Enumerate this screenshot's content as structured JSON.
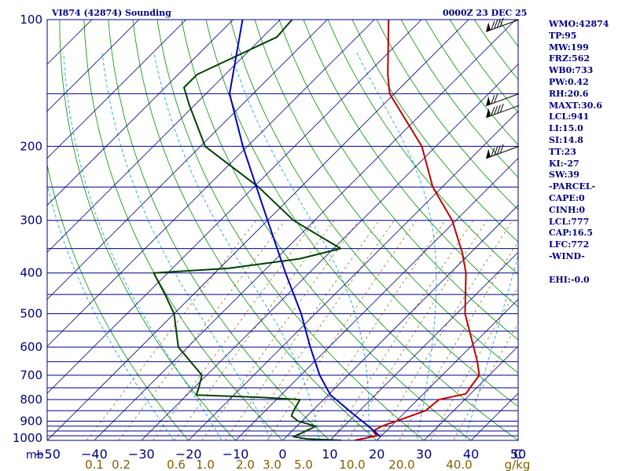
{
  "header": {
    "station": "VI874 (42874) Sounding",
    "time": "0000Z 23 DEC 25"
  },
  "indices": [
    "WMO:42874",
    "TP:95",
    "MW:199",
    "FRZ:562",
    "WB0:733",
    "PW:0.42",
    "RH:20.6",
    "MAXT:30.6",
    "LCL:941",
    "LI:15.0",
    "SI:14.8",
    "TT:23",
    "KI:-27",
    "SW:39",
    "-PARCEL-",
    "CAPE:0",
    "CINH:0",
    "LCL:777",
    "CAP:16.5",
    "LFC:772",
    "-WIND-",
    "",
    "EHI:-0.0"
  ],
  "chart_data": {
    "type": "line",
    "title": "VI874 (42874) Sounding",
    "x_unit": "C",
    "y_unit": "mb",
    "xlim": [
      -50,
      50
    ],
    "ylim": [
      1000,
      100
    ],
    "y_scale": "log",
    "skew_deg": 45,
    "pressure_ticks": [
      100,
      200,
      300,
      400,
      500,
      600,
      700,
      800,
      900,
      1000
    ],
    "isobars": [
      100,
      150,
      200,
      250,
      300,
      350,
      400,
      450,
      500,
      550,
      600,
      650,
      700,
      750,
      800,
      850,
      900,
      925,
      950,
      975,
      1000
    ],
    "temp_ticks": [
      -50,
      -40,
      -30,
      -20,
      -10,
      0,
      10,
      20,
      30,
      40,
      50
    ],
    "mixing_ratio_labels": [
      "0.1",
      "0.2",
      "0.6",
      "1.0",
      "2.0",
      "3.0",
      "5.0",
      "10.0",
      "20.0",
      "40.0"
    ],
    "mixing_ratio_unit": "g/kg",
    "colors": {
      "isobar": "#000080",
      "isotherm": "#000080",
      "dry_adiabat": "#009000",
      "moist_adiabat": "#00a0d0",
      "mixing_ratio": "#806000",
      "temperature": "#c00000",
      "dewpoint": "#004000",
      "parcel": "#0000c0",
      "labels": "#000080",
      "mixing_labels": "#806000"
    },
    "series": [
      {
        "name": "Temperature",
        "color": "#c00000",
        "points": [
          [
            1000,
            15.3
          ],
          [
            975,
            19.0
          ],
          [
            950,
            17.2
          ],
          [
            925,
            18.0
          ],
          [
            900,
            20.0
          ],
          [
            850,
            24.0
          ],
          [
            800,
            24.5
          ],
          [
            775,
            29.0
          ],
          [
            750,
            28.6
          ],
          [
            700,
            27.9
          ],
          [
            650,
            24.6
          ],
          [
            600,
            20.7
          ],
          [
            500,
            11.8
          ],
          [
            400,
            3.3
          ],
          [
            360,
            -1.5
          ],
          [
            300,
            -10.8
          ],
          [
            250,
            -22.0
          ],
          [
            200,
            -33.0
          ],
          [
            150,
            -51.0
          ],
          [
            135,
            -55.5
          ],
          [
            100,
            -67.0
          ]
        ]
      },
      {
        "name": "Dewpoint",
        "color": "#004000",
        "points": [
          [
            1000,
            12.5
          ],
          [
            992,
            4.8
          ],
          [
            980,
            1.5
          ],
          [
            950,
            3.0
          ],
          [
            925,
            4.0
          ],
          [
            900,
            -0.8
          ],
          [
            875,
            -3.3
          ],
          [
            850,
            -4.0
          ],
          [
            800,
            -5.0
          ],
          [
            790,
            -14.0
          ],
          [
            780,
            -28.0
          ],
          [
            750,
            -29.0
          ],
          [
            700,
            -31.0
          ],
          [
            600,
            -42.0
          ],
          [
            500,
            -50.0
          ],
          [
            450,
            -56.0
          ],
          [
            400,
            -63.0
          ],
          [
            390,
            -48.0
          ],
          [
            370,
            -35.0
          ],
          [
            350,
            -28.5
          ],
          [
            300,
            -44.5
          ],
          [
            250,
            -59.0
          ],
          [
            200,
            -79.0
          ],
          [
            160,
            -91.0
          ],
          [
            145,
            -96.0
          ],
          [
            135,
            -96.0
          ],
          [
            110,
            -87.0
          ],
          [
            100,
            -87.5
          ]
        ]
      },
      {
        "name": "Parcel",
        "color": "#0000c0",
        "points": [
          [
            980,
            20.0
          ],
          [
            920,
            14.7
          ],
          [
            860,
            8.8
          ],
          [
            800,
            2.7
          ],
          [
            780,
            0.5
          ],
          [
            700,
            -6.0
          ],
          [
            600,
            -14.0
          ],
          [
            500,
            -23.0
          ],
          [
            400,
            -35.0
          ],
          [
            300,
            -50.0
          ],
          [
            200,
            -71.0
          ],
          [
            150,
            -85.0
          ],
          [
            100,
            -98.0
          ]
        ]
      }
    ],
    "wind_barbs": [
      {
        "p": 100,
        "dir": 250,
        "speed": 95
      },
      {
        "p": 150,
        "dir": 250,
        "speed": 75
      },
      {
        "p": 160,
        "dir": 245,
        "speed": 95
      },
      {
        "p": 200,
        "dir": 250,
        "speed": 95
      }
    ]
  }
}
